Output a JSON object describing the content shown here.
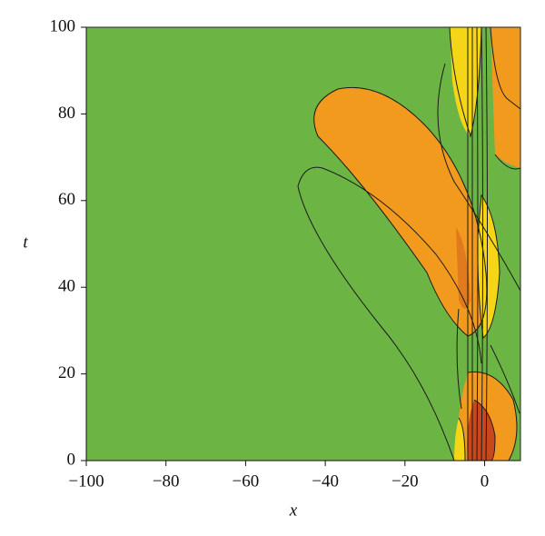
{
  "chart_data": {
    "type": "contour",
    "x_label": "x",
    "y_label": "t",
    "xlim": [
      -100,
      9
    ],
    "ylim": [
      0,
      100
    ],
    "xticks": [
      {
        "value": -100,
        "label": "−100"
      },
      {
        "value": -80,
        "label": "−80"
      },
      {
        "value": -60,
        "label": "−60"
      },
      {
        "value": -40,
        "label": "−40"
      },
      {
        "value": -20,
        "label": "−20"
      },
      0
    ],
    "yticks": [
      0,
      20,
      40,
      60,
      80,
      100
    ]
  }
}
